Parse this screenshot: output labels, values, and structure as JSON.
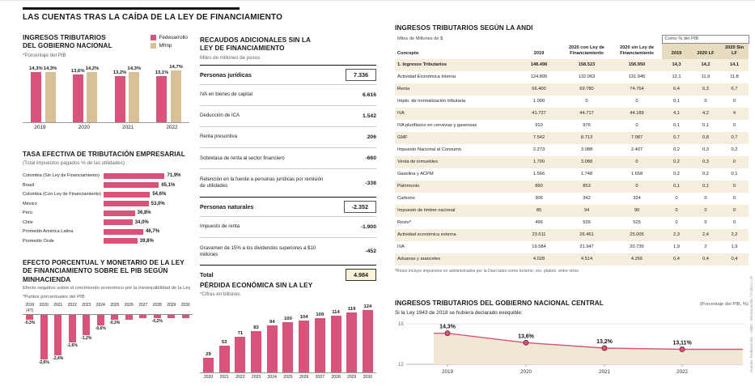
{
  "header": {
    "title": "LAS CUENTAS TRAS LA CAÍDA DE LA LEY DE FINANCIAMIENTO"
  },
  "source_note": "Fuente: Fedesarrollo - ANDI - Minhacienda / Gráfico: LR",
  "colors": {
    "pink": "#d8547a",
    "tan": "#d9c197",
    "stripe": "#f5eedd",
    "header_beige": "#e7dbc0",
    "area_fill": "#f1e8d4",
    "box_fill": "#fbf2d8"
  },
  "panels": {
    "ingresos": {
      "title": "INGRESOS TRIBUTARIOS DEL GOBIERNO NACIONAL",
      "note": "*Porcentaje del PIB",
      "legend": [
        {
          "label": "Fedesarrollo"
        },
        {
          "label": "Mfmp"
        }
      ]
    },
    "tasa": {
      "title": "TASA EFECTIVA DE TRIBUTACIÓN EMPRESARIAL",
      "note": "(Total impuestos pagados % de las utilidades)"
    },
    "efecto": {
      "title": "EFECTO PORCENTUAL Y MONETARIO DE LA LEY DE FINANCIAMIENTO SOBRE EL PIB SEGÚN MINHACIENDA",
      "subtitle": "Efecto negativo sobre el crecimiento económico por la inexequibilidad de la Ley",
      "note": "*Puntos porcentuales del PIB"
    },
    "recaudos": {
      "title": "RECAUDOS ADICIONALES SIN LA LEY DE FINANCIAMIENTO",
      "note": "Miles de millones de pesos",
      "sections": [
        {
          "label": "Personas jurídicas",
          "value": "7.336",
          "items": [
            {
              "label": "IVA en bienes de capital",
              "value": "6.616"
            },
            {
              "label": "Deducción de ICA",
              "value": "1.542"
            },
            {
              "label": "Renta presuntiva",
              "value": "206"
            },
            {
              "label": "Sobretasa de renta al sector financiero",
              "value": "-660"
            },
            {
              "label": "Retención en la fuente a personas jurídicas por remisión de utilidades",
              "value": "-338"
            }
          ]
        },
        {
          "label": "Personas naturales",
          "value": "-2.352",
          "items": [
            {
              "label": "Impuesto de renta",
              "value": "-1.900"
            },
            {
              "label": "Gravamen de 15% a los dividendos superiores a $10 millones",
              "value": "-452"
            }
          ]
        }
      ],
      "total": {
        "label": "Total",
        "value": "4.984"
      }
    },
    "perdida": {
      "title": "PÉRDIDA ECONÓMICA SIN LA LEY",
      "note": "*Cifras en billones"
    },
    "andi": {
      "title": "INGRESOS TRIBUTARIOS SEGÚN LA ANDI",
      "unit_note": "Miles de Millones de $",
      "pib_header": "Como % del PIB",
      "col_headers": {
        "concepto": "Concepto",
        "y2019": "2019",
        "y2020_con": "2020 con Ley de Financiamiento",
        "y2020_sin": "2020 sin Ley de Financiamiento",
        "pib_2019": "2019",
        "pib_2020_lf": "2020 LF",
        "pib_2020_sin": "2020 Sin LF"
      },
      "rows": [
        [
          "1. Ingresos Tributarios",
          "148.496",
          "158.523",
          "156.950",
          "14,3",
          "14,2",
          "14,1"
        ],
        [
          "Actividad Económica Interna",
          "124.895",
          "132.063",
          "131.945",
          "12,1",
          "11,9",
          "11,8"
        ],
        [
          "Renta",
          "66.400",
          "69.780",
          "74.764",
          "6,4",
          "6,3",
          "6,7"
        ],
        [
          "Impto. de normalización tributaria",
          "1.000",
          "0",
          "0",
          "0,1",
          "0",
          "0"
        ],
        [
          "IVA",
          "41.727",
          "44.717",
          "44.189",
          "4,1",
          "4,2",
          "4"
        ],
        [
          "IVA plurifásico en cervezas y gaseosas",
          "910",
          "976",
          "0",
          "0,1",
          "0,1",
          "0"
        ],
        [
          "GMF",
          "7.542",
          "8.713",
          "7.987",
          "0,7",
          "0,8",
          "0,7"
        ],
        [
          "Impuesto Nacional al Consumo",
          "2.273",
          "3.088",
          "2.407",
          "0,2",
          "0,3",
          "0,2"
        ],
        [
          "Venta de inmuebles",
          "1.700",
          "3.088",
          "0",
          "0,2",
          "0,3",
          "0"
        ],
        [
          "Gasolina y ACPM",
          "1.566",
          "1.748",
          "1.658",
          "0,2",
          "0,2",
          "0,1"
        ],
        [
          "Patrimonio",
          "890",
          "853",
          "0",
          "0,1",
          "0,1",
          "0"
        ],
        [
          "Carbono",
          "306",
          "342",
          "324",
          "0",
          "0",
          "0"
        ],
        [
          "Impuesto de timbre nacional",
          "85",
          "94",
          "90",
          "0",
          "0",
          "0"
        ],
        [
          "Resto*",
          "496",
          "539",
          "525",
          "0",
          "0",
          "0"
        ],
        [
          "Actividad económica externa",
          "23.611",
          "26.461",
          "25.005",
          "2,3",
          "2,4",
          "2,2"
        ],
        [
          "IVA",
          "19.584",
          "21.947",
          "20.739",
          "1,9",
          "2",
          "1,9"
        ],
        [
          "Aduanas y aranceles",
          "4.028",
          "4.514",
          "4.266",
          "0,4",
          "0,4",
          "0,4"
        ]
      ],
      "footnote": "*Resto incluye impuestos no administrados por la Dian tales como turismo, oro, platino, entre otros"
    },
    "gnc": {
      "title": "INGRESOS TRIBUTARIOS DEL GOBIERNO NACIONAL CENTRAL",
      "unit_note": "(Porcentaje del PIB, %)",
      "subtitle": "Si la Ley 1943 de 2018 se hubiera declarado exequible:"
    }
  },
  "chart_data": [
    {
      "id": "ingresos_gobierno",
      "type": "bar",
      "title": "Ingresos tributarios del Gobierno Nacional (% del PIB)",
      "categories": [
        "2019",
        "2020",
        "2021",
        "2022"
      ],
      "series": [
        {
          "name": "Fedesarrollo",
          "values": [
            14.3,
            13.6,
            13.2,
            13.1
          ],
          "labels": [
            "14,3%",
            "13,6%",
            "13,2%",
            "13,1%"
          ]
        },
        {
          "name": "Mfmp",
          "values": [
            14.3,
            14.2,
            14.3,
            14.7
          ],
          "labels": [
            "14,3%",
            "14,2%",
            "14,3%",
            "14,7%"
          ]
        }
      ],
      "ylim": [
        0,
        15
      ],
      "legend_position": "top-right"
    },
    {
      "id": "tasa_efectiva",
      "type": "bar",
      "orientation": "horizontal",
      "title": "Tasa efectiva de tributación empresarial (%)",
      "categories": [
        "Colombia (Sin Ley de Financiamiento)",
        "Brasil",
        "Colombia (Con Ley de Financiamiento)",
        "México",
        "Perú",
        "Chile",
        "Promedio América Latina",
        "Promedio Ocde"
      ],
      "values": [
        71.9,
        65.1,
        54.6,
        53.0,
        36.8,
        34.0,
        46.7,
        39.8
      ],
      "labels": [
        "71,9%",
        "65,1%",
        "54,6%",
        "53,0%",
        "36,8%",
        "34,0%",
        "46,7%",
        "39,8%"
      ],
      "xlim": [
        0,
        80
      ]
    },
    {
      "id": "efecto_pib",
      "type": "bar",
      "title": "Efecto sobre el PIB (puntos porcentuales)",
      "categories": [
        "2019\n(4T)",
        "2020",
        "2021",
        "2022",
        "2023",
        "2024",
        "2025",
        "2026",
        "2027",
        "2028",
        "2029",
        "2030"
      ],
      "values": [
        -0.3,
        -2.6,
        -2.4,
        -1.6,
        -1.2,
        -0.6,
        -0.3,
        -0.3,
        -0.2,
        -0.2,
        -0.2,
        -0.2
      ],
      "labels": [
        "-0,3%",
        "-2,6%",
        "-2,4%",
        "-1,6%",
        "-1,2%",
        "-0,6%",
        "-0,3%",
        "",
        "",
        "-0,2%",
        "",
        ""
      ],
      "ylim": [
        -3,
        0
      ]
    },
    {
      "id": "perdida",
      "type": "bar",
      "title": "Pérdida económica sin la Ley (billones)",
      "categories": [
        "2020",
        "2021",
        "2022",
        "2023",
        "2024",
        "2025",
        "2026",
        "2027",
        "2028",
        "2029",
        "2030"
      ],
      "values": [
        29,
        53,
        71,
        83,
        94,
        100,
        104,
        109,
        114,
        119,
        124
      ],
      "ylim": [
        0,
        130
      ]
    },
    {
      "id": "gnc",
      "type": "line",
      "title": "Ingresos tributarios del Gobierno Nacional Central (% del PIB)",
      "x": [
        "2019",
        "2020",
        "2021",
        "2022"
      ],
      "values": [
        14.3,
        13.6,
        13.2,
        13.11
      ],
      "labels": [
        "14,3%",
        "13,6%",
        "13,2%",
        "13,11%"
      ],
      "ylim": [
        12,
        15
      ],
      "yticks": [
        15,
        12
      ],
      "area_fill": true
    }
  ]
}
